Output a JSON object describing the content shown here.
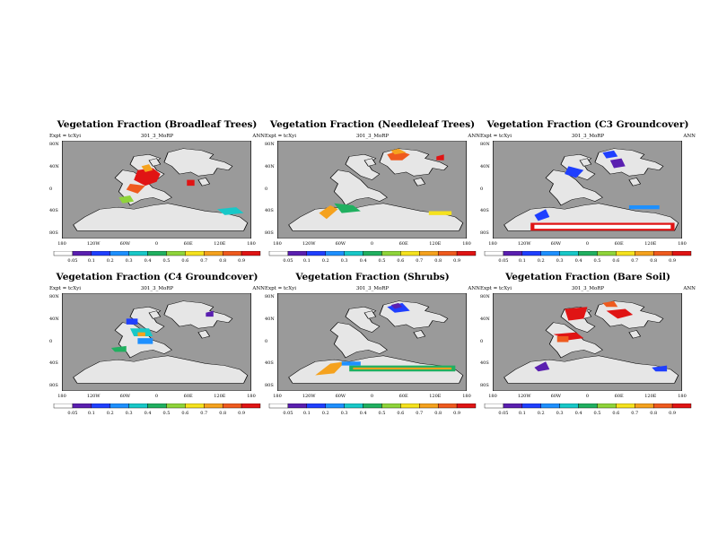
{
  "chart_data": [
    {
      "type": "heatmap",
      "title": "Vegetation Fraction (Broadleaf Trees)",
      "subtitle_left": "Expt = tcXyi",
      "subtitle_center": "301_3_MoRP",
      "subtitle_right": "ANN",
      "y_ticks": [
        "80N",
        "40N",
        "0",
        "40S",
        "80S"
      ],
      "x_ticks": [
        "180",
        "120W",
        "60W",
        "0",
        "60E",
        "120E",
        "180"
      ],
      "colorbar_ticks": [
        "0.05",
        "0.1",
        "0.2",
        "0.3",
        "0.4",
        "0.5",
        "0.6",
        "0.7",
        "0.8",
        "0.9"
      ],
      "ylim": [
        -90,
        90
      ],
      "xlim": [
        -180,
        180
      ]
    },
    {
      "type": "heatmap",
      "title": "Vegetation Fraction (Needleleaf Trees)",
      "subtitle_left": "Expt = tcXyi",
      "subtitle_center": "301_3_MoRP",
      "subtitle_right": "ANN",
      "y_ticks": [
        "80N",
        "40N",
        "0",
        "40S",
        "80S"
      ],
      "x_ticks": [
        "180",
        "120W",
        "60W",
        "0",
        "60E",
        "120E",
        "180"
      ],
      "colorbar_ticks": [
        "0.05",
        "0.1",
        "0.2",
        "0.3",
        "0.4",
        "0.5",
        "0.6",
        "0.7",
        "0.8",
        "0.9"
      ],
      "ylim": [
        -90,
        90
      ],
      "xlim": [
        -180,
        180
      ]
    },
    {
      "type": "heatmap",
      "title": "Vegetation Fraction (C3 Groundcover)",
      "subtitle_left": "Expt = tcXyi",
      "subtitle_center": "301_3_MoRP",
      "subtitle_right": "ANN",
      "y_ticks": [
        "80N",
        "40N",
        "0",
        "40S",
        "80S"
      ],
      "x_ticks": [
        "180",
        "120W",
        "60W",
        "0",
        "60E",
        "120E",
        "180"
      ],
      "colorbar_ticks": [
        "0.05",
        "0.1",
        "0.2",
        "0.3",
        "0.4",
        "0.5",
        "0.6",
        "0.7",
        "0.8",
        "0.9"
      ],
      "ylim": [
        -90,
        90
      ],
      "xlim": [
        -180,
        180
      ]
    },
    {
      "type": "heatmap",
      "title": "Vegetation Fraction (C4 Groundcover)",
      "subtitle_left": "Expt = tcXyi",
      "subtitle_center": "301_3_MoRP",
      "subtitle_right": "ANN",
      "y_ticks": [
        "80N",
        "40N",
        "0",
        "40S",
        "80S"
      ],
      "x_ticks": [
        "180",
        "120W",
        "60W",
        "0",
        "60E",
        "120E",
        "180"
      ],
      "colorbar_ticks": [
        "0.05",
        "0.1",
        "0.2",
        "0.3",
        "0.4",
        "0.5",
        "0.6",
        "0.7",
        "0.8",
        "0.9"
      ],
      "ylim": [
        -90,
        90
      ],
      "xlim": [
        -180,
        180
      ]
    },
    {
      "type": "heatmap",
      "title": "Vegetation Fraction (Shrubs)",
      "subtitle_left": "Expt = tcXyi",
      "subtitle_center": "301_3_MoRP",
      "subtitle_right": "ANN",
      "y_ticks": [
        "80N",
        "40N",
        "0",
        "40S",
        "80S"
      ],
      "x_ticks": [
        "180",
        "120W",
        "60W",
        "0",
        "60E",
        "120E",
        "180"
      ],
      "colorbar_ticks": [
        "0.05",
        "0.1",
        "0.2",
        "0.3",
        "0.4",
        "0.5",
        "0.6",
        "0.7",
        "0.8",
        "0.9"
      ],
      "ylim": [
        -90,
        90
      ],
      "xlim": [
        -180,
        180
      ]
    },
    {
      "type": "heatmap",
      "title": "Vegetation Fraction (Bare Soil)",
      "subtitle_left": "Expt = tcXyi",
      "subtitle_center": "301_3_MoRP",
      "subtitle_right": "ANN",
      "y_ticks": [
        "80N",
        "40N",
        "0",
        "40S",
        "80S"
      ],
      "x_ticks": [
        "180",
        "120W",
        "60W",
        "0",
        "60E",
        "120E",
        "180"
      ],
      "colorbar_ticks": [
        "0.05",
        "0.1",
        "0.2",
        "0.3",
        "0.4",
        "0.5",
        "0.6",
        "0.7",
        "0.8",
        "0.9"
      ],
      "ylim": [
        -90,
        90
      ],
      "xlim": [
        -180,
        180
      ]
    }
  ],
  "colors": {
    "ocean": "#9a9a9a",
    "land": "#e6e6e6",
    "colorbar": [
      "#ffffff",
      "#5a1fb0",
      "#1f3fff",
      "#1e90ff",
      "#18c8c8",
      "#20b060",
      "#8fd43a",
      "#f5e21e",
      "#f5a21e",
      "#ef5a1e",
      "#e01414"
    ]
  }
}
